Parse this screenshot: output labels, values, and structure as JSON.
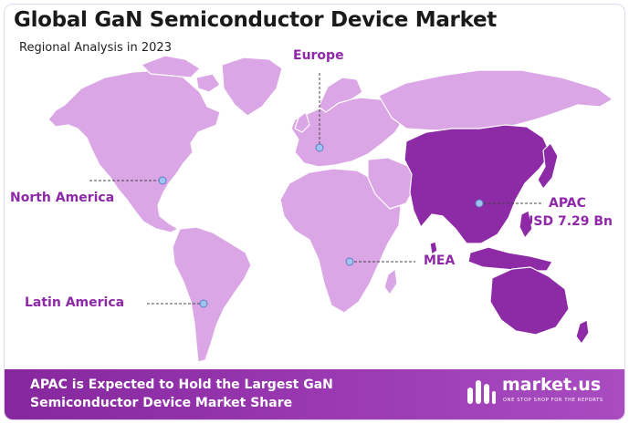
{
  "title": "Global GaN Semiconductor Device Market",
  "subtitle": "Regional Analysis in 2023",
  "regions": {
    "europe": "Europe",
    "north_america": "North America",
    "latin_america": "Latin America",
    "mea": "MEA",
    "apac_name": "APAC",
    "apac_value": "USD 7.29 Bn"
  },
  "highlighted_region": "APAC",
  "colors": {
    "land": "#dba6e6",
    "highlight": "#8d2aa6",
    "label": "#8f28a8",
    "footer": "#8c2ca6",
    "marker": "#9fc2f0"
  },
  "footer": {
    "line1": "APAC is Expected to Hold the Largest GaN",
    "line2": "Semiconductor Device Market Share"
  },
  "brand": {
    "name": "market.us",
    "tagline": "ONE STOP SHOP FOR THE REPORTS"
  }
}
